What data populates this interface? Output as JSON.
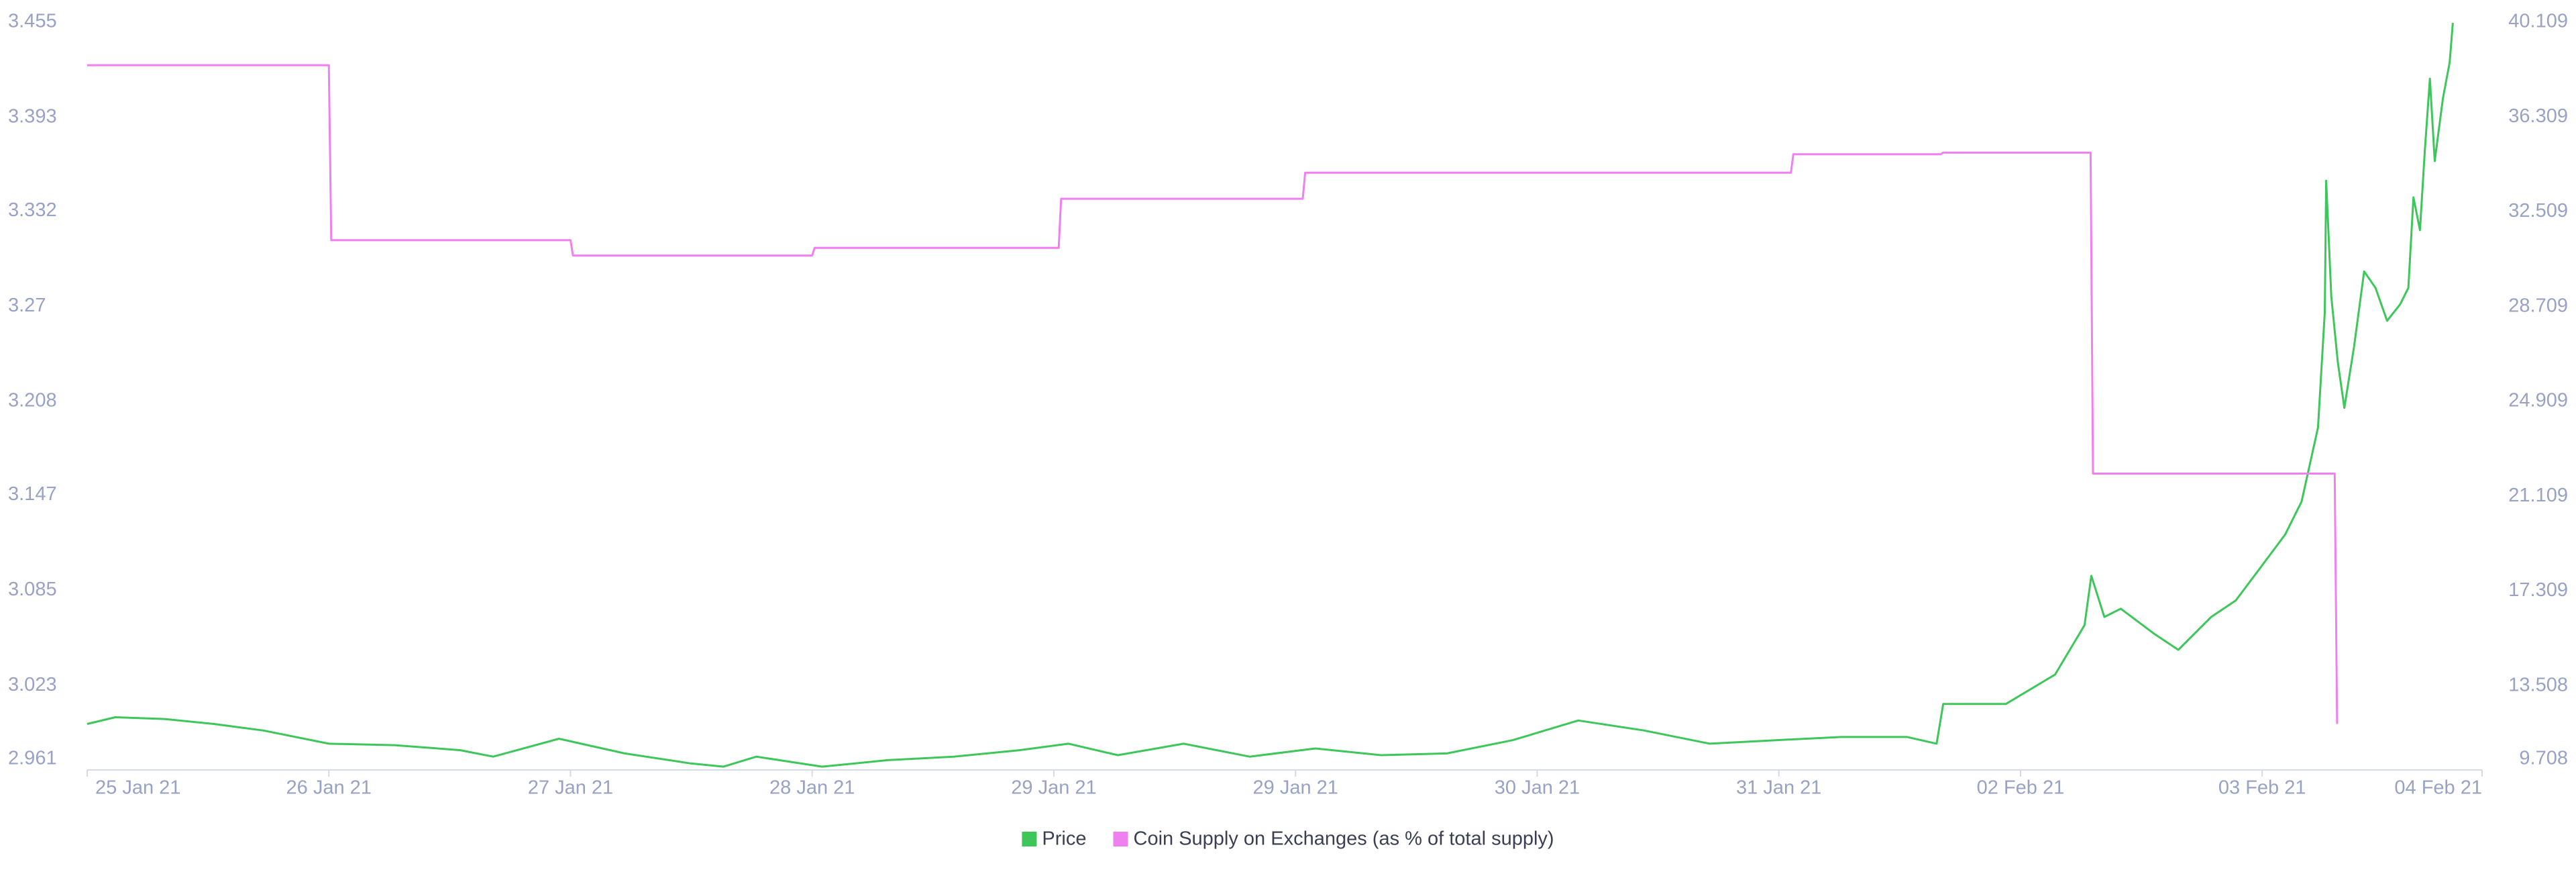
{
  "chart_data": {
    "type": "line",
    "xlim": [
      0,
      9.91
    ],
    "xticks": [
      {
        "value": 0,
        "label": "25 Jan 21"
      },
      {
        "value": 1,
        "label": "26 Jan 21"
      },
      {
        "value": 2,
        "label": "27 Jan 21"
      },
      {
        "value": 3,
        "label": "28 Jan 21"
      },
      {
        "value": 4,
        "label": "29 Jan 21"
      },
      {
        "value": 5,
        "label": "29 Jan 21"
      },
      {
        "value": 6,
        "label": "30 Jan 21"
      },
      {
        "value": 7,
        "label": "31 Jan 21"
      },
      {
        "value": 8,
        "label": "02 Feb 21"
      },
      {
        "value": 9,
        "label": "03 Feb 21"
      },
      {
        "value": 9.91,
        "label": "04 Feb 21"
      }
    ],
    "ylim": [
      2.961,
      3.455
    ],
    "yticks": [
      2.961,
      3.023,
      3.085,
      3.147,
      3.208,
      3.27,
      3.332,
      3.393,
      3.455
    ],
    "y2lim": [
      9.708,
      40.109
    ],
    "y2ticks": [
      9.708,
      13.508,
      17.309,
      21.109,
      24.909,
      28.709,
      32.509,
      36.309,
      40.109
    ],
    "grid": false,
    "legend": "bottom",
    "series": [
      {
        "name": "Price",
        "color": "#3dc75a",
        "axis": "y2",
        "x": [
          0,
          0.116,
          0.32,
          0.524,
          0.728,
          1.0,
          1.272,
          1.544,
          1.68,
          1.952,
          2.224,
          2.497,
          2.633,
          2.769,
          3.041,
          3.313,
          3.585,
          3.857,
          4.061,
          4.265,
          4.537,
          4.81,
          5.082,
          5.354,
          5.626,
          5.898,
          6.17,
          6.442,
          6.714,
          6.986,
          7.259,
          7.531,
          7.653,
          7.68,
          7.939,
          8.143,
          8.265,
          8.293,
          8.347,
          8.415,
          8.551,
          8.653,
          8.789,
          8.891,
          8.993,
          9.095,
          9.163,
          9.231,
          9.259,
          9.265,
          9.286,
          9.313,
          9.34,
          9.381,
          9.422,
          9.469,
          9.517,
          9.571,
          9.605,
          9.626,
          9.653,
          9.673,
          9.694,
          9.714,
          9.748,
          9.776,
          9.789
        ],
        "values": [
          11.55,
          11.82,
          11.75,
          11.55,
          11.29,
          10.76,
          10.7,
          10.5,
          10.24,
          10.96,
          10.37,
          9.97,
          9.84,
          10.24,
          9.84,
          10.1,
          10.24,
          10.5,
          10.76,
          10.3,
          10.76,
          10.24,
          10.57,
          10.3,
          10.37,
          10.9,
          11.69,
          11.29,
          10.76,
          10.9,
          11.03,
          11.03,
          10.76,
          12.35,
          12.35,
          13.53,
          15.51,
          17.49,
          15.84,
          16.17,
          15.18,
          14.52,
          15.84,
          16.5,
          17.82,
          19.14,
          20.46,
          23.43,
          28.04,
          33.32,
          28.7,
          26.06,
          24.22,
          26.72,
          29.69,
          29.03,
          27.71,
          28.37,
          29.03,
          32.66,
          31.34,
          34.51,
          37.41,
          34.11,
          36.62,
          38.07,
          39.65
        ]
      },
      {
        "name": "Coin Supply on Exchanges (as % of total supply)",
        "color": "#f07ff0",
        "axis": "y",
        "x": [
          0,
          1.0,
          1.01,
          2.0,
          2.01,
          3.0,
          3.01,
          4.02,
          4.03,
          5.03,
          5.04,
          7.05,
          7.06,
          7.67,
          7.68,
          8.29,
          8.3,
          9.3,
          9.31
        ],
        "values": [
          3.42,
          3.42,
          3.306,
          3.306,
          3.296,
          3.296,
          3.301,
          3.301,
          3.333,
          3.333,
          3.35,
          3.35,
          3.362,
          3.362,
          3.363,
          3.363,
          3.154,
          3.154,
          2.991
        ]
      }
    ]
  }
}
